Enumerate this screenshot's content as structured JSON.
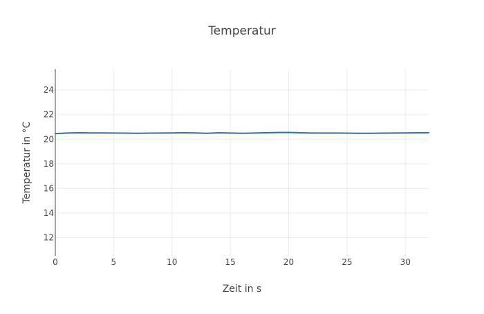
{
  "chart_data": {
    "type": "line",
    "title": "Temperatur",
    "xlabel": "Zeit in s",
    "ylabel": "Temperatur in °C",
    "xlim": [
      0,
      32
    ],
    "ylim": [
      10.5,
      25.7
    ],
    "grid": true,
    "x_ticks": [
      0,
      5,
      10,
      15,
      20,
      25,
      30
    ],
    "y_ticks": [
      12,
      14,
      16,
      18,
      20,
      22,
      24
    ],
    "series": [
      {
        "color": "#1f77b4",
        "x": [
          0,
          1,
          2,
          3,
          4,
          5,
          6,
          7,
          8,
          9,
          10,
          11,
          12,
          13,
          13.5,
          14,
          15,
          16,
          17,
          18,
          19,
          20,
          21,
          22,
          23,
          24,
          25,
          26,
          27,
          28,
          29,
          30,
          31,
          32
        ],
        "y": [
          20.45,
          20.5,
          20.52,
          20.51,
          20.51,
          20.5,
          20.49,
          20.48,
          20.49,
          20.5,
          20.51,
          20.52,
          20.51,
          20.48,
          20.5,
          20.52,
          20.5,
          20.48,
          20.5,
          20.52,
          20.54,
          20.55,
          20.52,
          20.5,
          20.5,
          20.5,
          20.49,
          20.48,
          20.48,
          20.49,
          20.5,
          20.51,
          20.52,
          20.53
        ]
      }
    ]
  }
}
